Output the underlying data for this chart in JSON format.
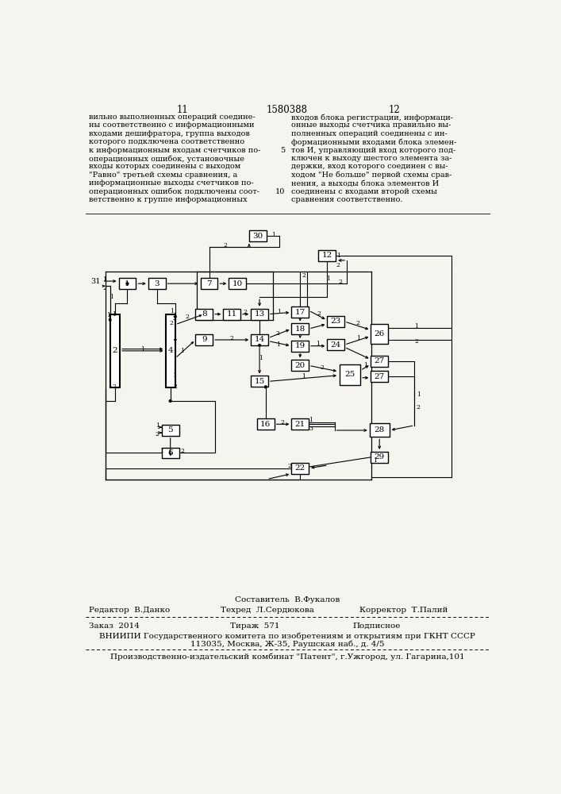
{
  "page_num_left": "11",
  "page_num_center": "1580388",
  "page_num_right": "12",
  "left_lines": [
    "вильно выполненных операций соедине-",
    "ны соответственно с информационными",
    "входами дешифратора, группа выходов",
    "которого подключена соответственно",
    "к информационным входам счетчиков по-",
    "операционных ошибок, установочные",
    "входы которых соединены с выходом",
    "\"Равно\" третьей схемы сравнения, а",
    "информационные выходы счетчиков по-",
    "операционных ошибок подключены соот-",
    "ветственно к группе информационных"
  ],
  "right_lines": [
    "входов блока регистрации, информаци-",
    "онные выходы счетчика правильно вы-",
    "полненных операций соединены с ин-",
    "формационными входами блока элемен-",
    "тов И, управляющий вход которого под-",
    "ключен к выходу шестого элемента за-",
    "держки, вход которого соединен с вы-",
    "ходом \"Не больше\" первой схемы срав-",
    "нения, а выходы блока элементов И",
    "соединены с входами второй схемы",
    "сравнения соответственно."
  ],
  "footer_composer": "Составитель  В.Фукалов",
  "footer_editor": "Редактор  В.Данко",
  "footer_techred": "Техред  Л.Сердюкова",
  "footer_corrector": "Корректор  Т.Палий",
  "footer_order": "Заказ  2014",
  "footer_tirazh": "Тираж  571",
  "footer_podpisnoe": "Подписное",
  "footer_vniiipi": "ВНИИПИ Государственного комитета по изобретениям и открытиям при ГКНТ СССР",
  "footer_address": "113035, Москва, Ж-35, Раушская наб., д. 4/5",
  "footer_patent": "Производственно-издательский комбинат \"Патент\", г.Ужгород, ул. Гагарина,101",
  "bg_color": "#f5f4ee"
}
